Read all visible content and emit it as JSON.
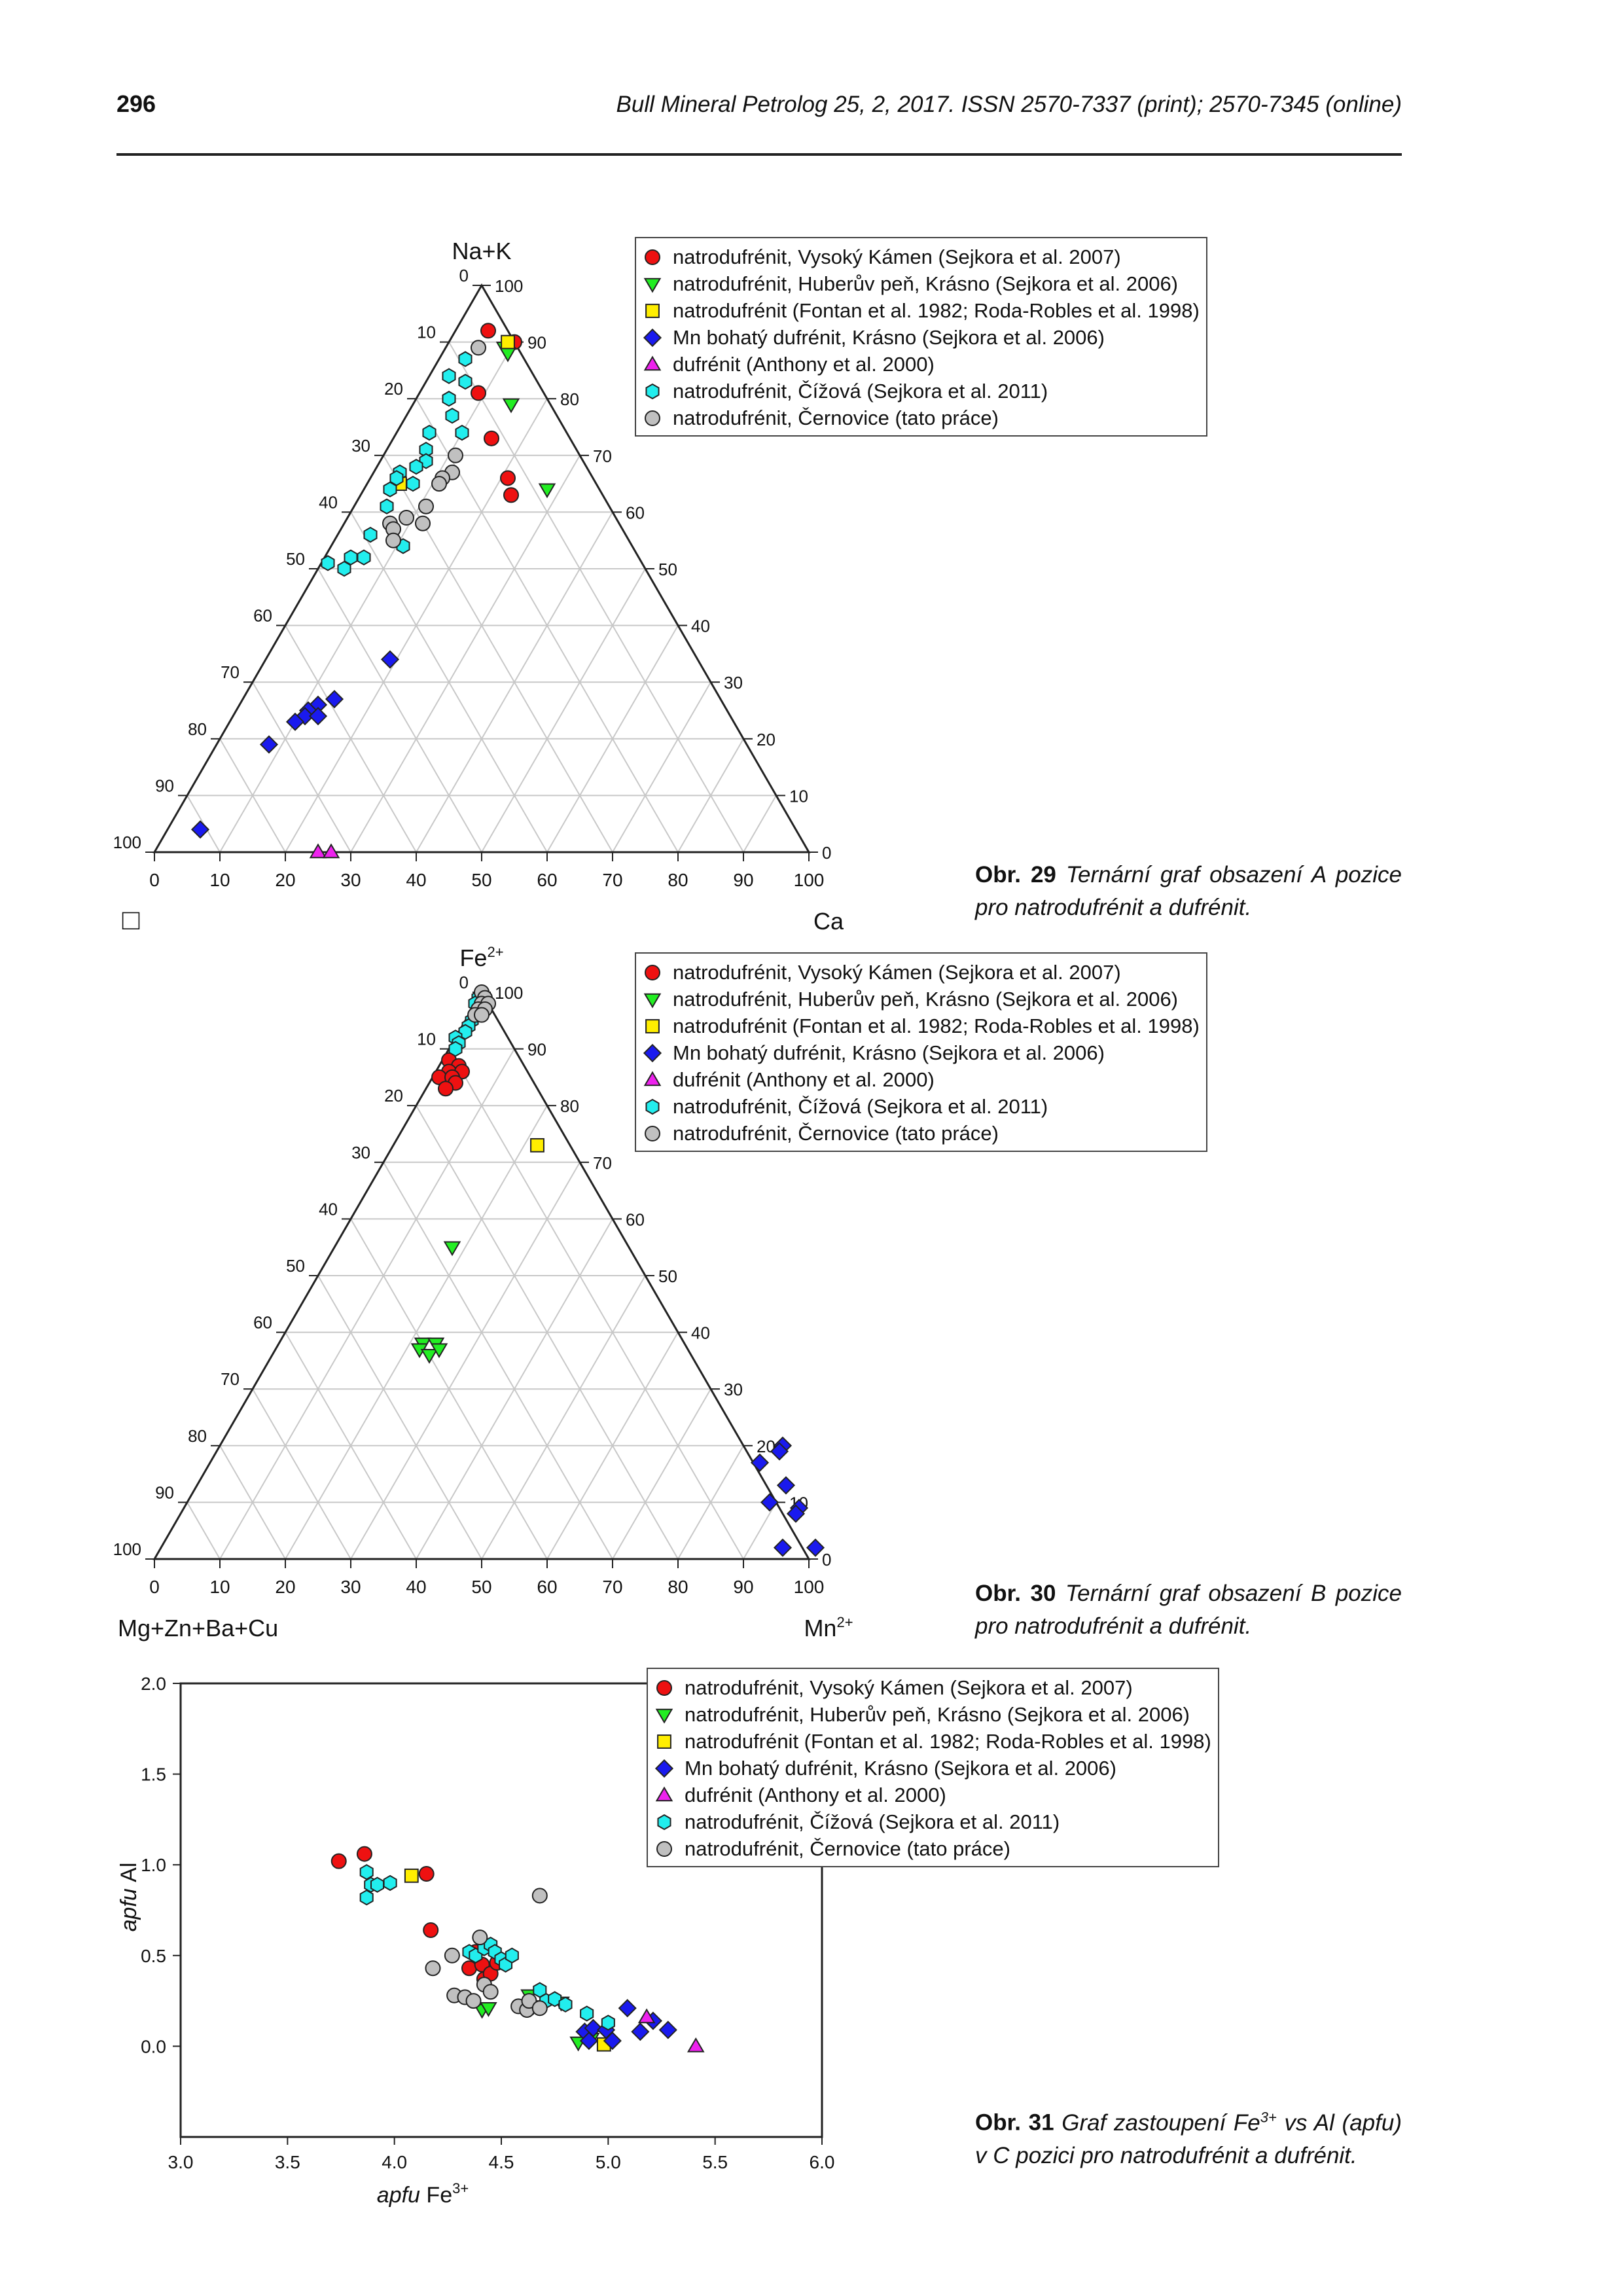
{
  "header": {
    "page_number": "296",
    "journal": "Bull Mineral Petrolog 25, 2, 2017. ISSN 2570-7337 (print); 2570-7345 (online)"
  },
  "legend_items": [
    {
      "label": "natrodufrénit, Vysoký Kámen (Sejkora et al. 2007)",
      "symbol": "circle",
      "color": "#ee1111"
    },
    {
      "label": "natrodufrénit, Huberův peň, Krásno (Sejkora et al. 2006)",
      "symbol": "triangle-down",
      "color": "#22ee22"
    },
    {
      "label": "natrodufrénit (Fontan et al. 1982; Roda-Robles et al. 1998)",
      "symbol": "square",
      "color": "#ffee00"
    },
    {
      "label": "Mn bohatý dufrénit, Krásno (Sejkora et al. 2006)",
      "symbol": "diamond",
      "color": "#1a1aee"
    },
    {
      "label": "dufrénit (Anthony et al. 2000)",
      "symbol": "triangle-up",
      "color": "#ee22ee"
    },
    {
      "label": "natrodufrénit, Čížová (Sejkora et al. 2011)",
      "symbol": "hexagon",
      "color": "#22eeee"
    },
    {
      "label": "natrodufrénit, Černovice (tato práce)",
      "symbol": "circle",
      "color": "#c0c0c0"
    }
  ],
  "captions": {
    "fig29": {
      "label": "Obr. 29",
      "text": "Ternární graf obsazení A pozice pro natrodufrénit a dufrénit."
    },
    "fig30": {
      "label": "Obr. 30",
      "text": "Ternární graf obsazení B pozice pro natrodufrénit a dufrénit."
    },
    "fig31": {
      "label": "Obr. 31",
      "text_before": "Graf zastoupení Fe",
      "sup": "3+",
      "text_after": " vs Al (apfu) v C pozici pro natrodufrénit a dufrénit."
    }
  },
  "chart_data": [
    {
      "type": "scatter",
      "subtype": "ternary",
      "apex_labels": {
        "top": "Na+K",
        "bottom_left": "□",
        "bottom_right": "Ca"
      },
      "ticks": [
        "0",
        "10",
        "20",
        "30",
        "40",
        "50",
        "60",
        "70",
        "80",
        "90",
        "100"
      ],
      "coordinates": "percent of top apex (Na+K) and right apex (Ca); vacancy = 100 - top - right",
      "grid": true,
      "legend_position": "top-right",
      "series": [
        {
          "name": "natrodufrénit, Vysoký Kámen (Sejkora et al. 2007)",
          "points": [
            [
              92,
              5
            ],
            [
              90,
              10
            ],
            [
              81,
              9
            ],
            [
              73,
              15
            ],
            [
              66,
              21
            ],
            [
              63,
              23
            ]
          ]
        },
        {
          "name": "natrodufrénit, Huberův peň, Krásno (Sejkora et al. 2006)",
          "points": [
            [
              89,
              9
            ],
            [
              88,
              10
            ],
            [
              79,
              15
            ],
            [
              64,
              28
            ]
          ]
        },
        {
          "name": "natrodufrénit (Fontan et al. 1982; Roda-Robles et al. 1998)",
          "points": [
            [
              65,
              5
            ],
            [
              90,
              9
            ]
          ]
        },
        {
          "name": "Mn bohatý dufrénit, Krásno (Sejkora et al. 2006)",
          "points": [
            [
              34,
              19
            ],
            [
              27,
              14
            ],
            [
              26,
              12
            ],
            [
              25,
              11
            ],
            [
              24,
              11
            ],
            [
              24,
              13
            ],
            [
              23,
              10
            ],
            [
              19,
              8
            ],
            [
              4,
              5
            ]
          ]
        },
        {
          "name": "dufrénit (Anthony et al. 2000)",
          "points": [
            [
              0,
              25
            ],
            [
              0,
              27
            ]
          ]
        },
        {
          "name": "natrodufrénit, Čížová (Sejkora et al. 2011)",
          "points": [
            [
              87,
              4
            ],
            [
              84,
              3
            ],
            [
              83,
              6
            ],
            [
              80,
              5
            ],
            [
              77,
              7
            ],
            [
              74,
              5
            ],
            [
              74,
              10
            ],
            [
              71,
              6
            ],
            [
              69,
              7
            ],
            [
              68,
              6
            ],
            [
              67,
              4
            ],
            [
              66,
              4
            ],
            [
              65,
              7
            ],
            [
              64,
              4
            ],
            [
              61,
              5
            ],
            [
              58,
              7
            ],
            [
              56,
              5
            ],
            [
              54,
              11
            ],
            [
              52,
              6
            ],
            [
              52,
              4
            ],
            [
              51,
              1
            ],
            [
              50,
              4
            ]
          ]
        },
        {
          "name": "natrodufrénit, Černovice (tato práce)",
          "points": [
            [
              89,
              5
            ],
            [
              70,
              11
            ],
            [
              67,
              12
            ],
            [
              66,
              11
            ],
            [
              65,
              11
            ],
            [
              61,
              11
            ],
            [
              59,
              9
            ],
            [
              58,
              7
            ],
            [
              58,
              12
            ],
            [
              57,
              8
            ],
            [
              55,
              9
            ]
          ]
        }
      ]
    },
    {
      "type": "scatter",
      "subtype": "ternary",
      "apex_labels": {
        "top": "Fe",
        "top_sup": "2+",
        "bottom_left": "Mg+Zn+Ba+Cu",
        "bottom_right": "Mn",
        "bottom_right_sup": "2+"
      },
      "ticks": [
        "0",
        "10",
        "20",
        "30",
        "40",
        "50",
        "60",
        "70",
        "80",
        "90",
        "100"
      ],
      "coordinates": "percent of top apex (Fe2+) and right apex (Mn2+); Mg+Zn+Ba+Cu = 100 - top - right",
      "grid": true,
      "legend_position": "top-right",
      "series": [
        {
          "name": "natrodufrénit, Vysoký Kámen (Sejkora et al. 2007)",
          "points": [
            [
              88,
              1
            ],
            [
              87,
              3
            ],
            [
              86,
              2
            ],
            [
              86,
              4
            ],
            [
              85,
              1
            ],
            [
              85,
              3
            ],
            [
              84,
              4
            ],
            [
              83,
              3
            ]
          ]
        },
        {
          "name": "natrodufrénit, Huberův peň, Krásno (Sejkora et al. 2006)",
          "points": [
            [
              55,
              18
            ],
            [
              38,
              22
            ],
            [
              37,
              22
            ],
            [
              38,
              24
            ],
            [
              36,
              24
            ],
            [
              37,
              25
            ]
          ]
        },
        {
          "name": "natrodufrénit (Fontan et al. 1982; Roda-Robles et al. 1998)",
          "points": [
            [
              73,
              22
            ]
          ]
        },
        {
          "name": "Mn bohatý dufrénit, Krásno (Sejkora et al. 2006)",
          "points": [
            [
              20,
              86
            ],
            [
              19,
              86
            ],
            [
              17,
              84
            ],
            [
              13,
              90
            ],
            [
              10,
              89
            ],
            [
              9,
              94
            ],
            [
              8,
              94
            ],
            [
              2,
              95
            ],
            [
              2,
              100
            ]
          ]
        },
        {
          "name": "dufrénit (Anthony et al. 2000)",
          "points": []
        },
        {
          "name": "natrodufrénit, Čížová (Sejkora et al. 2011)",
          "points": [
            [
              99,
              0
            ],
            [
              98,
              0
            ],
            [
              97,
              1
            ],
            [
              96,
              1
            ],
            [
              95,
              1
            ],
            [
              94,
              1
            ],
            [
              93,
              1
            ],
            [
              92,
              0
            ],
            [
              91,
              1
            ],
            [
              90,
              1
            ]
          ]
        },
        {
          "name": "natrodufrénit, Černovice (tato práce)",
          "points": [
            [
              100,
              0
            ],
            [
              99,
              1
            ],
            [
              98,
              1
            ],
            [
              98,
              2
            ],
            [
              97,
              1
            ],
            [
              97,
              2
            ],
            [
              96,
              1
            ],
            [
              96,
              2
            ]
          ]
        }
      ]
    },
    {
      "type": "scatter",
      "xlabel": "apfu Fe",
      "xlabel_sup": "3+",
      "ylabel": "apfu Al",
      "x_ticks": [
        "3.0",
        "3.5",
        "4.0",
        "4.5",
        "5.0",
        "5.5",
        "6.0"
      ],
      "y_ticks": [
        "0.0",
        "0.5",
        "1.0",
        "1.5",
        "2.0"
      ],
      "xlim": [
        3.0,
        6.0
      ],
      "ylim": [
        -0.5,
        2.0
      ],
      "grid": false,
      "legend_position": "top-right",
      "series": [
        {
          "name": "natrodufrénit, Vysoký Kámen (Sejkora et al. 2007)",
          "points": [
            [
              3.74,
              1.02
            ],
            [
              3.86,
              1.06
            ],
            [
              4.15,
              0.95
            ],
            [
              4.17,
              0.64
            ],
            [
              4.35,
              0.43
            ],
            [
              4.38,
              0.52
            ],
            [
              4.41,
              0.45
            ],
            [
              4.42,
              0.37
            ],
            [
              4.45,
              0.4
            ],
            [
              4.48,
              0.46
            ]
          ]
        },
        {
          "name": "natrodufrénit, Huberův peň, Krásno (Sejkora et al. 2006)",
          "points": [
            [
              4.41,
              0.2
            ],
            [
              4.44,
              0.21
            ],
            [
              4.63,
              0.28
            ],
            [
              4.65,
              0.22
            ],
            [
              4.78,
              0.24
            ],
            [
              4.86,
              0.02
            ],
            [
              4.92,
              0.04
            ]
          ]
        },
        {
          "name": "natrodufrénit (Fontan et al. 1982; Roda-Robles et al. 1998)",
          "points": [
            [
              4.08,
              0.94
            ],
            [
              4.98,
              0.01
            ]
          ]
        },
        {
          "name": "Mn bohatý dufrénit, Krásno (Sejkora et al. 2006)",
          "points": [
            [
              4.89,
              0.08
            ],
            [
              4.91,
              0.03
            ],
            [
              4.93,
              0.1
            ],
            [
              4.99,
              0.09
            ],
            [
              5.02,
              0.03
            ],
            [
              5.09,
              0.21
            ],
            [
              5.15,
              0.08
            ],
            [
              5.21,
              0.14
            ],
            [
              5.28,
              0.09
            ]
          ]
        },
        {
          "name": "dufrénit (Anthony et al. 2000)",
          "points": [
            [
              5.18,
              0.16
            ],
            [
              5.41,
              0.0
            ]
          ]
        },
        {
          "name": "natrodufrénit, Čížová (Sejkora et al. 2011)",
          "points": [
            [
              3.87,
              0.96
            ],
            [
              3.87,
              0.82
            ],
            [
              3.89,
              0.89
            ],
            [
              3.92,
              0.89
            ],
            [
              3.98,
              0.9
            ],
            [
              4.35,
              0.52
            ],
            [
              4.38,
              0.5
            ],
            [
              4.42,
              0.54
            ],
            [
              4.45,
              0.56
            ],
            [
              4.47,
              0.52
            ],
            [
              4.5,
              0.48
            ],
            [
              4.52,
              0.45
            ],
            [
              4.55,
              0.5
            ],
            [
              4.68,
              0.31
            ],
            [
              4.71,
              0.25
            ],
            [
              4.75,
              0.26
            ],
            [
              4.8,
              0.23
            ],
            [
              4.9,
              0.18
            ],
            [
              5.0,
              0.13
            ]
          ]
        },
        {
          "name": "natrodufrénit, Černovice (tato práce)",
          "points": [
            [
              4.18,
              0.43
            ],
            [
              4.27,
              0.5
            ],
            [
              4.28,
              0.28
            ],
            [
              4.33,
              0.27
            ],
            [
              4.37,
              0.25
            ],
            [
              4.4,
              0.6
            ],
            [
              4.42,
              0.34
            ],
            [
              4.45,
              0.3
            ],
            [
              4.58,
              0.22
            ],
            [
              4.62,
              0.2
            ],
            [
              4.63,
              0.25
            ],
            [
              4.68,
              0.21
            ],
            [
              4.68,
              0.83
            ]
          ]
        }
      ]
    }
  ]
}
